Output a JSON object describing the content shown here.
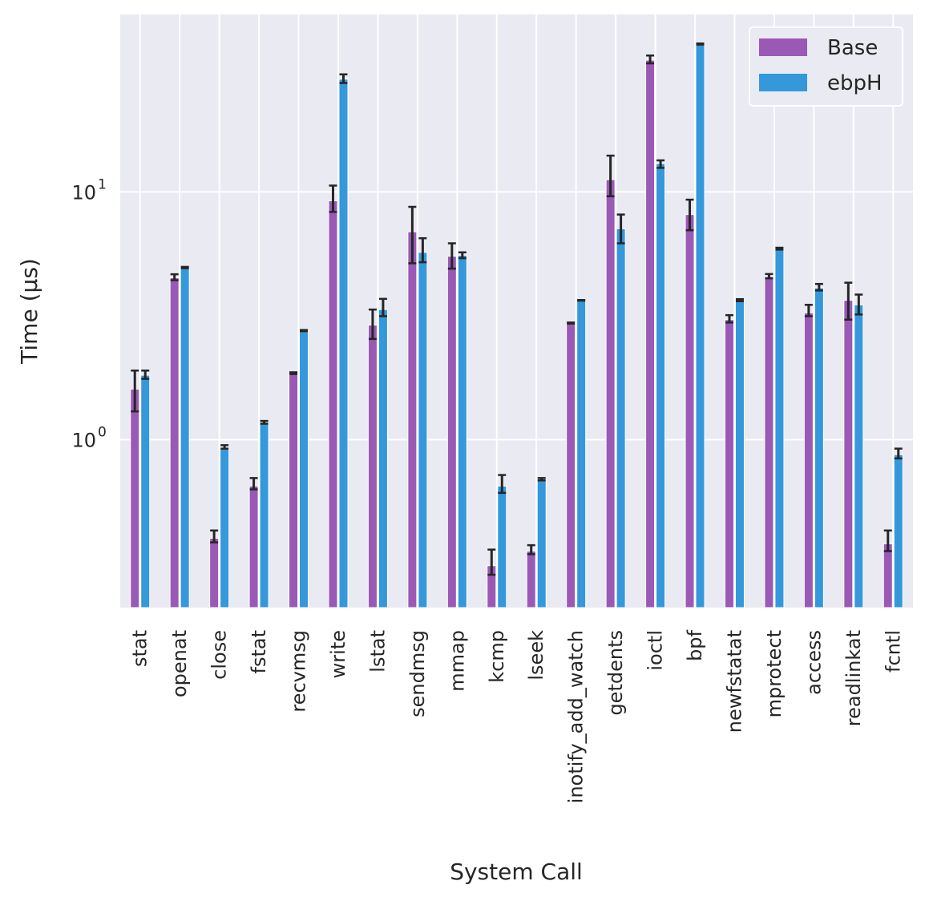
{
  "chart_data": {
    "type": "bar",
    "title": "",
    "xlabel": "System Call",
    "ylabel": "Time (μs)",
    "yscale": "log",
    "ylim": [
      0.21,
      52
    ],
    "yticks": [
      {
        "value": 1,
        "label": "10",
        "exp": "0"
      },
      {
        "value": 10,
        "label": "10",
        "exp": "1"
      }
    ],
    "grid": true,
    "legend": "top-right",
    "categories": [
      "stat",
      "openat",
      "close",
      "fstat",
      "recvmsg",
      "write",
      "lstat",
      "sendmsg",
      "mmap",
      "kcmp",
      "lseek",
      "inotify_add_watch",
      "getdents",
      "ioctl",
      "bpf",
      "newfstatat",
      "mprotect",
      "access",
      "readlinkat",
      "fcntl"
    ],
    "series": [
      {
        "name": "Base",
        "color": "#9b59b6",
        "values": [
          1.6,
          4.5,
          0.4,
          0.65,
          1.85,
          9.2,
          2.9,
          6.9,
          5.5,
          0.31,
          0.355,
          2.95,
          11.2,
          34,
          8.1,
          3.05,
          4.55,
          3.25,
          3.65,
          0.38
        ],
        "err_low": [
          1.3,
          4.4,
          0.385,
          0.63,
          1.84,
          8.3,
          2.55,
          5.15,
          4.9,
          0.285,
          0.345,
          2.94,
          9.6,
          33,
          7,
          2.97,
          4.48,
          3.15,
          3.05,
          0.355
        ],
        "err_high": [
          1.9,
          4.65,
          0.43,
          0.7,
          1.87,
          10.6,
          3.35,
          8.7,
          6.2,
          0.36,
          0.375,
          2.97,
          14,
          35.5,
          9.3,
          3.18,
          4.66,
          3.5,
          4.3,
          0.43
        ]
      },
      {
        "name": "ebpH",
        "color": "#3498db",
        "values": [
          1.82,
          4.95,
          0.93,
          1.17,
          2.75,
          28.5,
          3.35,
          5.7,
          5.55,
          0.65,
          0.69,
          3.65,
          7.1,
          13,
          39.5,
          3.65,
          5.9,
          4.1,
          3.5,
          0.87
        ],
        "err_low": [
          1.76,
          4.92,
          0.92,
          1.16,
          2.74,
          27.5,
          3.15,
          5.2,
          5.4,
          0.61,
          0.685,
          3.64,
          6.2,
          12.5,
          39.3,
          3.62,
          5.85,
          4.0,
          3.2,
          0.84
        ],
        "err_high": [
          1.9,
          4.98,
          0.95,
          1.19,
          2.77,
          29.8,
          3.7,
          6.5,
          5.7,
          0.72,
          0.7,
          3.66,
          8.1,
          13.4,
          39.7,
          3.69,
          5.95,
          4.25,
          3.85,
          0.92
        ]
      }
    ]
  }
}
